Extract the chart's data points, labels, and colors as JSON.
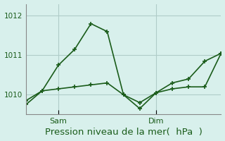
{
  "background_color": "#d8f0ec",
  "grid_color": "#b0ccc8",
  "line_color": "#1a5c1a",
  "line1_x": [
    0,
    1,
    2,
    3,
    4,
    5,
    6,
    7,
    8,
    9,
    10,
    11,
    12
  ],
  "line1_y": [
    1009.85,
    1010.1,
    1010.15,
    1010.2,
    1010.25,
    1010.3,
    1010.0,
    1009.8,
    1010.05,
    1010.15,
    1010.2,
    1010.2,
    1011.05
  ],
  "line2_x": [
    0,
    1,
    2,
    3,
    4,
    5,
    6,
    7,
    8,
    9,
    10,
    11,
    12
  ],
  "line2_y": [
    1009.75,
    1010.1,
    1010.75,
    1011.15,
    1011.8,
    1011.6,
    1010.0,
    1009.65,
    1010.05,
    1010.3,
    1010.4,
    1010.85,
    1011.05
  ],
  "yticks": [
    1010,
    1011,
    1012
  ],
  "ylim": [
    1009.5,
    1012.3
  ],
  "xlim": [
    0,
    12
  ],
  "xtick_positions": [
    2,
    8
  ],
  "xtick_labels": [
    "Sam",
    "Dim"
  ],
  "xlabel": "Pression niveau de la mer(  hPa  )",
  "xlabel_fontsize": 9.5,
  "marker": "+",
  "markersize": 5,
  "linewidth": 1.2
}
